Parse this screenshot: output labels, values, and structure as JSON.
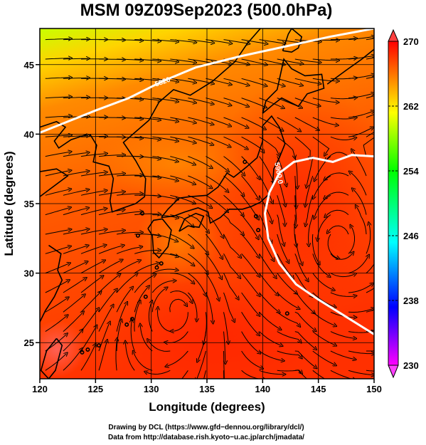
{
  "title": "MSM 09Z09Sep2023 (500.0hPa)",
  "x_axis": {
    "label": "Longitude (degrees)",
    "range": [
      120,
      150
    ],
    "ticks": [
      "120",
      "125",
      "130",
      "135",
      "140",
      "145",
      "150"
    ]
  },
  "y_axis": {
    "label": "Latitude  (degrees)",
    "range": [
      22.4,
      47.6
    ],
    "ticks": [
      "25",
      "30",
      "35",
      "40",
      "45"
    ]
  },
  "colorbar": {
    "range": [
      230,
      270
    ],
    "labels": [
      "270",
      "262",
      "254",
      "246",
      "238",
      "230"
    ],
    "colors": [
      "#ff00ff",
      "#0000ff",
      "#00ffff",
      "#00ff00",
      "#ffff00",
      "#ff0000"
    ]
  },
  "contours": [
    {
      "label": "5820",
      "lon_lat": [
        [
          120,
          40.1
        ],
        [
          125,
          41.7
        ],
        [
          128,
          42.6
        ],
        [
          131,
          43.8
        ],
        [
          134,
          44.8
        ],
        [
          138,
          45.6
        ],
        [
          142,
          46.3
        ],
        [
          146,
          47.0
        ],
        [
          150,
          47.6
        ]
      ]
    },
    {
      "label": "5900.0",
      "lon_lat": [
        [
          150,
          25.6
        ],
        [
          147,
          27.1
        ],
        [
          145,
          28.1
        ],
        [
          143,
          29.2
        ],
        [
          141.5,
          30.7
        ],
        [
          140.5,
          32.5
        ],
        [
          140.2,
          34.3
        ],
        [
          140.6,
          35.8
        ],
        [
          141.5,
          37.2
        ],
        [
          142.8,
          38.0
        ],
        [
          144.5,
          38.3
        ],
        [
          146.3,
          38.0
        ],
        [
          148,
          38.5
        ],
        [
          150,
          38.4
        ]
      ]
    }
  ],
  "credits": {
    "line1": "Drawing by DCL (https://www.gfd−dennou.org/library/dcl/)",
    "line2": "Data from http://database.rish.kyoto−u.ac.jp/arch/jmadata/"
  }
}
